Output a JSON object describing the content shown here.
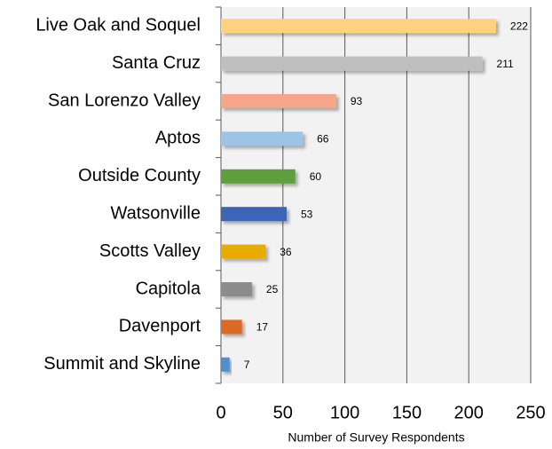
{
  "chart_data": {
    "type": "bar",
    "orientation": "horizontal",
    "xlabel": "Number of Survey Respondents",
    "categories": [
      "Live Oak and Soquel",
      "Santa Cruz",
      "San Lorenzo Valley",
      "Aptos",
      "Outside County",
      "Watsonville",
      "Scotts Valley",
      "Capitola",
      "Davenport",
      "Summit and Skyline"
    ],
    "values": [
      222,
      211,
      93,
      66,
      60,
      53,
      36,
      25,
      17,
      7
    ],
    "colors": [
      "#ffd27f",
      "#bfbfbf",
      "#f4a58a",
      "#9dc3e6",
      "#5e9e3e",
      "#3c65b5",
      "#e8ab00",
      "#8c8c8c",
      "#dc6a26",
      "#4f8fcc"
    ],
    "xlim": [
      0,
      250
    ],
    "xticks": [
      0,
      50,
      100,
      150,
      200,
      250
    ],
    "grid": true
  }
}
